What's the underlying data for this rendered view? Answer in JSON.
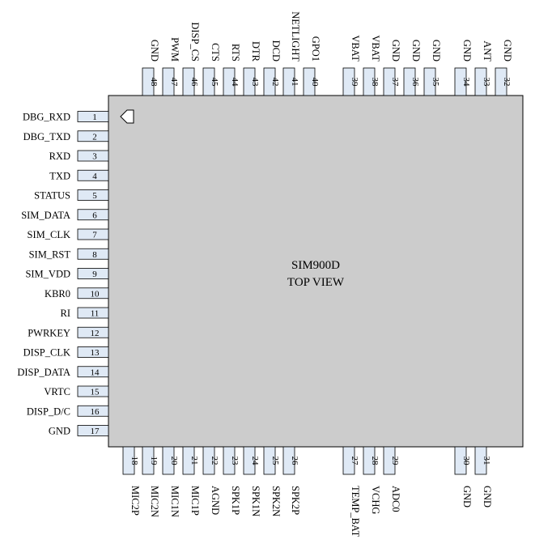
{
  "chip": {
    "name": "SIM900D",
    "view": "TOP VIEW",
    "body_color": "#cccccc",
    "pad_color": "#dfe9f5"
  },
  "pins_left": [
    {
      "num": "1",
      "label": "DBG_RXD"
    },
    {
      "num": "2",
      "label": "DBG_TXD"
    },
    {
      "num": "3",
      "label": "RXD"
    },
    {
      "num": "4",
      "label": "TXD"
    },
    {
      "num": "5",
      "label": "STATUS"
    },
    {
      "num": "6",
      "label": "SIM_DATA"
    },
    {
      "num": "7",
      "label": "SIM_CLK"
    },
    {
      "num": "8",
      "label": "SIM_RST"
    },
    {
      "num": "9",
      "label": "SIM_VDD"
    },
    {
      "num": "10",
      "label": "KBR0"
    },
    {
      "num": "11",
      "label": "RI"
    },
    {
      "num": "12",
      "label": "PWRKEY"
    },
    {
      "num": "13",
      "label": "DISP_CLK"
    },
    {
      "num": "14",
      "label": "DISP_DATA"
    },
    {
      "num": "15",
      "label": "VRTC"
    },
    {
      "num": "16",
      "label": "DISP_D/C"
    },
    {
      "num": "17",
      "label": "GND"
    }
  ],
  "pins_top": [
    {
      "num": "48",
      "label": "GND"
    },
    {
      "num": "47",
      "label": "PWM"
    },
    {
      "num": "46",
      "label": "DISP_CS"
    },
    {
      "num": "45",
      "label": "CTS"
    },
    {
      "num": "44",
      "label": "RTS"
    },
    {
      "num": "43",
      "label": "DTR"
    },
    {
      "num": "42",
      "label": "DCD"
    },
    {
      "num": "41",
      "label": "NETLIGHT"
    },
    {
      "num": "40",
      "label": "GPO1"
    },
    {
      "num": "39",
      "label": "VBAT"
    },
    {
      "num": "38",
      "label": "VBAT"
    },
    {
      "num": "37",
      "label": "GND"
    },
    {
      "num": "36",
      "label": "GND"
    },
    {
      "num": "35",
      "label": "GND"
    },
    {
      "num": "34",
      "label": "GND"
    },
    {
      "num": "33",
      "label": "ANT"
    },
    {
      "num": "32",
      "label": "GND"
    }
  ],
  "pins_bottom": [
    {
      "num": "18",
      "label": "MIC2P"
    },
    {
      "num": "19",
      "label": "MIC2N"
    },
    {
      "num": "20",
      "label": "MIC1N"
    },
    {
      "num": "21",
      "label": "MIC1P"
    },
    {
      "num": "22",
      "label": "AGND"
    },
    {
      "num": "23",
      "label": "SPK1P"
    },
    {
      "num": "24",
      "label": "SPK1N"
    },
    {
      "num": "25",
      "label": "SPK2N"
    },
    {
      "num": "26",
      "label": "SPK2P"
    },
    {
      "num": "27",
      "label": "TEMP_BAT"
    },
    {
      "num": "28",
      "label": "VCHG"
    },
    {
      "num": "29",
      "label": "ADC0"
    },
    {
      "num": "30",
      "label": "GND"
    },
    {
      "num": "31",
      "label": "GND"
    }
  ]
}
